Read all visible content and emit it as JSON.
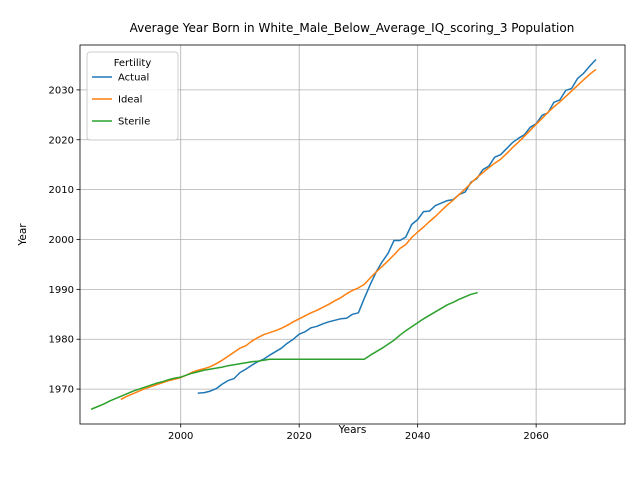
{
  "chart_data": {
    "type": "line",
    "title": "Average Year Born in White_Male_Below_Average_IQ_scoring_3 Population",
    "xlabel": "Years",
    "ylabel": "Year",
    "xlim": [
      1983,
      2075
    ],
    "ylim": [
      1963,
      2039
    ],
    "x_ticks": [
      2000,
      2020,
      2040,
      2060
    ],
    "y_ticks": [
      1970,
      1980,
      1990,
      2000,
      2010,
      2020,
      2030
    ],
    "grid": true,
    "legend": {
      "title": "Fertility",
      "placement": "top-left"
    },
    "series": [
      {
        "name": "Actual",
        "color": "#1f77b4",
        "x": [
          2003,
          2004,
          2005,
          2006,
          2007,
          2008,
          2009,
          2010,
          2011,
          2012,
          2013,
          2014,
          2015,
          2016,
          2017,
          2018,
          2019,
          2020,
          2021,
          2022,
          2023,
          2024,
          2025,
          2026,
          2027,
          2028,
          2029,
          2030,
          2031,
          2032,
          2033,
          2034,
          2035,
          2036,
          2037,
          2038,
          2039,
          2040,
          2041,
          2042,
          2043,
          2044,
          2045,
          2046,
          2047,
          2048,
          2049,
          2050,
          2051,
          2052,
          2053,
          2054,
          2055,
          2056,
          2057,
          2058,
          2059,
          2060,
          2061,
          2062,
          2063,
          2064,
          2065,
          2066,
          2067,
          2068,
          2069,
          2070
        ],
        "y": [
          1969.2,
          1969.3,
          1969.6,
          1970.1,
          1971,
          1971.7,
          1972.1,
          1973.3,
          1974.0,
          1974.8,
          1975.5,
          1976.0,
          1976.8,
          1977.5,
          1978.2,
          1979.2,
          1980.0,
          1981.0,
          1981.5,
          1982.3,
          1982.6,
          1983.1,
          1983.5,
          1983.8,
          1984.1,
          1984.2,
          1985.0,
          1985.3,
          1988.2,
          1991.0,
          1993.5,
          1995.5,
          1997.2,
          1999.8,
          1999.8,
          2000.5,
          2003.0,
          2004.0,
          2005.6,
          2005.7,
          2006.8,
          2007.3,
          2007.8,
          2008.0,
          2009.0,
          2009.5,
          2011.5,
          2012.2,
          2014.0,
          2014.7,
          2016.5,
          2017.0,
          2018.2,
          2019.4,
          2020.3,
          2021.0,
          2022.5,
          2023.2,
          2024.9,
          2025.4,
          2027.5,
          2028.0,
          2029.9,
          2030.3,
          2032.3,
          2033.3,
          2034.7,
          2036.0
        ]
      },
      {
        "name": "Ideal",
        "color": "#ff7f0e",
        "x": [
          1990,
          1991,
          1992,
          1993,
          1994,
          1995,
          1996,
          1997,
          1998,
          1999,
          2000,
          2001,
          2002,
          2003,
          2004,
          2005,
          2006,
          2007,
          2008,
          2009,
          2010,
          2011,
          2012,
          2013,
          2014,
          2015,
          2016,
          2017,
          2018,
          2019,
          2020,
          2021,
          2022,
          2023,
          2024,
          2025,
          2026,
          2027,
          2028,
          2029,
          2030,
          2031,
          2032,
          2033,
          2034,
          2035,
          2036,
          2037,
          2038,
          2039,
          2040,
          2041,
          2042,
          2043,
          2044,
          2045,
          2046,
          2047,
          2048,
          2049,
          2050,
          2051,
          2052,
          2053,
          2054,
          2055,
          2056,
          2057,
          2058,
          2059,
          2060,
          2061,
          2062,
          2063,
          2064,
          2065,
          2066,
          2067,
          2068,
          2069,
          2070
        ],
        "y": [
          1968.0,
          1968.6,
          1969.1,
          1969.6,
          1970.1,
          1970.5,
          1970.9,
          1971.3,
          1971.7,
          1972.0,
          1972.3,
          1972.8,
          1973.4,
          1973.8,
          1974.1,
          1974.5,
          1975.1,
          1975.8,
          1976.6,
          1977.4,
          1978.2,
          1978.7,
          1979.6,
          1980.3,
          1980.9,
          1981.3,
          1981.7,
          1982.2,
          1982.8,
          1983.5,
          1984.1,
          1984.7,
          1985.3,
          1985.8,
          1986.4,
          1987.0,
          1987.7,
          1988.3,
          1989.1,
          1989.8,
          1990.3,
          1991.0,
          1992.3,
          1993.5,
          1994.6,
          1995.7,
          1996.9,
          1998.2,
          1999.0,
          2000.4,
          2001.5,
          2002.5,
          2003.6,
          2004.6,
          2005.8,
          2006.9,
          2007.9,
          2009.0,
          2010.1,
          2011.3,
          2012.4,
          2013.4,
          2014.4,
          2015.3,
          2016.1,
          2017.2,
          2018.4,
          2019.5,
          2020.7,
          2021.9,
          2023.1,
          2024.3,
          2025.5,
          2026.6,
          2027.6,
          2028.7,
          2029.8,
          2030.9,
          2032.0,
          2033.1,
          2034.0
        ]
      },
      {
        "name": "Sterile",
        "color": "#2ca02c",
        "x": [
          1985,
          1986,
          1987,
          1988,
          1989,
          1990,
          1991,
          1992,
          1993,
          1994,
          1995,
          1996,
          1997,
          1998,
          1999,
          2000,
          2001,
          2002,
          2003,
          2004,
          2005,
          2006,
          2007,
          2008,
          2009,
          2010,
          2011,
          2012,
          2013,
          2014,
          2015,
          2016,
          2017,
          2018,
          2019,
          2020,
          2021,
          2022,
          2023,
          2024,
          2025,
          2026,
          2027,
          2028,
          2029,
          2030,
          2031,
          2032,
          2033,
          2034,
          2035,
          2036,
          2037,
          2038,
          2039,
          2040,
          2041,
          2042,
          2043,
          2044,
          2045,
          2046,
          2047,
          2048,
          2049,
          2050
        ],
        "y": [
          1966.0,
          1966.5,
          1967.0,
          1967.6,
          1968.1,
          1968.6,
          1969.1,
          1969.6,
          1970.0,
          1970.4,
          1970.8,
          1971.2,
          1971.5,
          1971.9,
          1972.2,
          1972.4,
          1972.8,
          1973.2,
          1973.5,
          1973.8,
          1974.0,
          1974.2,
          1974.4,
          1974.7,
          1974.9,
          1975.1,
          1975.3,
          1975.5,
          1975.6,
          1975.8,
          1976.0,
          1976.0,
          1976.0,
          1976.0,
          1976.0,
          1976.0,
          1976.0,
          1976.0,
          1976.0,
          1976.0,
          1976.0,
          1976.0,
          1976.0,
          1976.0,
          1976.0,
          1976.0,
          1976.0,
          1976.8,
          1977.5,
          1978.2,
          1979.0,
          1979.8,
          1980.8,
          1981.7,
          1982.5,
          1983.3,
          1984.1,
          1984.8,
          1985.5,
          1986.2,
          1986.9,
          1987.4,
          1988.0,
          1988.5,
          1989.0,
          1989.3
        ]
      }
    ]
  }
}
